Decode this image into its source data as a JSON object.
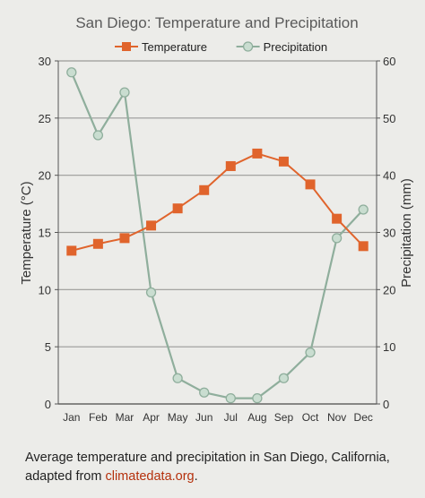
{
  "chart_data": {
    "type": "line",
    "title": "San Diego: Temperature and Precipitation",
    "categories": [
      "Jan",
      "Feb",
      "Mar",
      "Apr",
      "May",
      "Jun",
      "Jul",
      "Aug",
      "Sep",
      "Oct",
      "Nov",
      "Dec"
    ],
    "series": [
      {
        "name": "Temperature",
        "axis": "left",
        "color": "#e0642c",
        "marker": "square",
        "values": [
          13.4,
          14.0,
          14.5,
          15.6,
          17.1,
          18.7,
          20.8,
          21.9,
          21.2,
          19.2,
          16.2,
          13.8
        ]
      },
      {
        "name": "Precipitation",
        "axis": "right",
        "color": "#8fae9c",
        "marker": "circle",
        "values": [
          58,
          47,
          54.5,
          19.5,
          4.5,
          2,
          1,
          1,
          4.5,
          9,
          29,
          34
        ]
      }
    ],
    "ylabel": "Temperature (°C)",
    "ylim": [
      0,
      30
    ],
    "yticks": [
      0,
      5,
      10,
      15,
      20,
      25,
      30
    ],
    "y2label": "Precipitation (mm)",
    "y2lim": [
      0,
      60
    ],
    "y2ticks": [
      0,
      10,
      20,
      30,
      40,
      50,
      60
    ],
    "grid": true,
    "legend": "top-center"
  },
  "caption": {
    "text": "Average temperature and precipitation in San Diego, California, adapted from ",
    "link": "climatedata.org",
    "end": "."
  }
}
